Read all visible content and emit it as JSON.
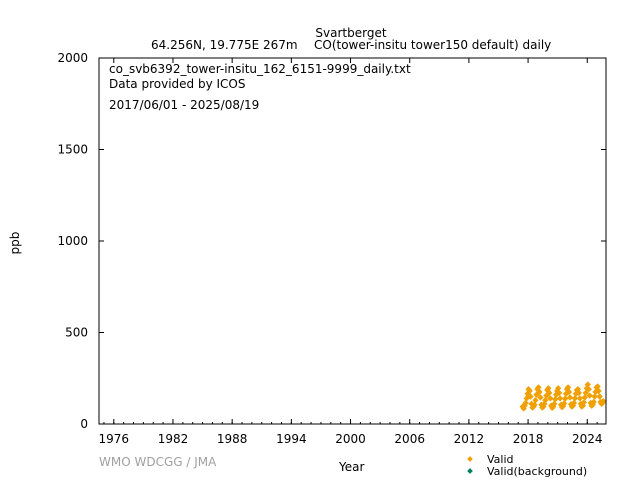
{
  "header": {
    "station": "Svartberget",
    "location": "64.256N, 19.775E 267m",
    "series_desc": "CO(tower-insitu tower150 default) daily"
  },
  "info": {
    "filename": "co_svb6392_tower-insitu_162_6151-9999_daily.txt",
    "provider": "Data provided by ICOS",
    "period": "2017/06/01 - 2025/08/19"
  },
  "watermark": "WMO WDCGG / JMA",
  "colors": {
    "valid": "#f0a000",
    "valid_background": "#008060"
  },
  "chart_data": {
    "type": "scatter",
    "xlabel": "Year",
    "ylabel": "ppb",
    "xlim": [
      1974.5,
      2025.9
    ],
    "ylim": [
      0,
      2000
    ],
    "xticks": [
      1976,
      1982,
      1988,
      1994,
      2000,
      2006,
      2012,
      2018,
      2024
    ],
    "yticks": [
      0,
      500,
      1000,
      1500,
      2000
    ],
    "legend_position": "bottom-right",
    "series": [
      {
        "name": "Valid",
        "marker": "diamond",
        "x": [
          2017.45,
          2017.55,
          2017.65,
          2017.75,
          2017.85,
          2017.95,
          2018.05,
          2018.15,
          2018.25,
          2018.35,
          2018.45,
          2018.55,
          2018.65,
          2018.75,
          2018.85,
          2018.95,
          2019.05,
          2019.15,
          2019.25,
          2019.35,
          2019.45,
          2019.55,
          2019.65,
          2019.75,
          2019.85,
          2019.95,
          2020.05,
          2020.15,
          2020.25,
          2020.35,
          2020.45,
          2020.55,
          2020.65,
          2020.75,
          2020.85,
          2020.95,
          2021.05,
          2021.15,
          2021.25,
          2021.35,
          2021.45,
          2021.55,
          2021.65,
          2021.75,
          2021.85,
          2021.95,
          2022.05,
          2022.15,
          2022.25,
          2022.35,
          2022.45,
          2022.55,
          2022.65,
          2022.75,
          2022.85,
          2022.95,
          2023.05,
          2023.15,
          2023.25,
          2023.35,
          2023.45,
          2023.55,
          2023.65,
          2023.75,
          2023.85,
          2023.95,
          2024.05,
          2024.15,
          2024.25,
          2024.35,
          2024.45,
          2024.55,
          2024.65,
          2024.75,
          2024.85,
          2024.95,
          2025.05,
          2025.15,
          2025.25,
          2025.35,
          2025.45,
          2025.55,
          2025.62
        ],
        "y": [
          95,
          85,
          100,
          115,
          140,
          165,
          190,
          180,
          150,
          110,
          90,
          95,
          105,
          130,
          160,
          190,
          200,
          175,
          145,
          105,
          90,
          95,
          110,
          130,
          155,
          185,
          195,
          170,
          140,
          100,
          88,
          95,
          110,
          135,
          160,
          180,
          195,
          170,
          140,
          105,
          92,
          98,
          112,
          138,
          165,
          190,
          200,
          175,
          145,
          108,
          95,
          100,
          115,
          140,
          165,
          185,
          190,
          170,
          140,
          110,
          95,
          100,
          118,
          145,
          170,
          195,
          215,
          190,
          155,
          115,
          100,
          105,
          120,
          150,
          175,
          200,
          205,
          180,
          150,
          120,
          110,
          115,
          125
        ]
      },
      {
        "name": "Valid(background)",
        "marker": "diamond",
        "x": [],
        "y": []
      }
    ]
  }
}
